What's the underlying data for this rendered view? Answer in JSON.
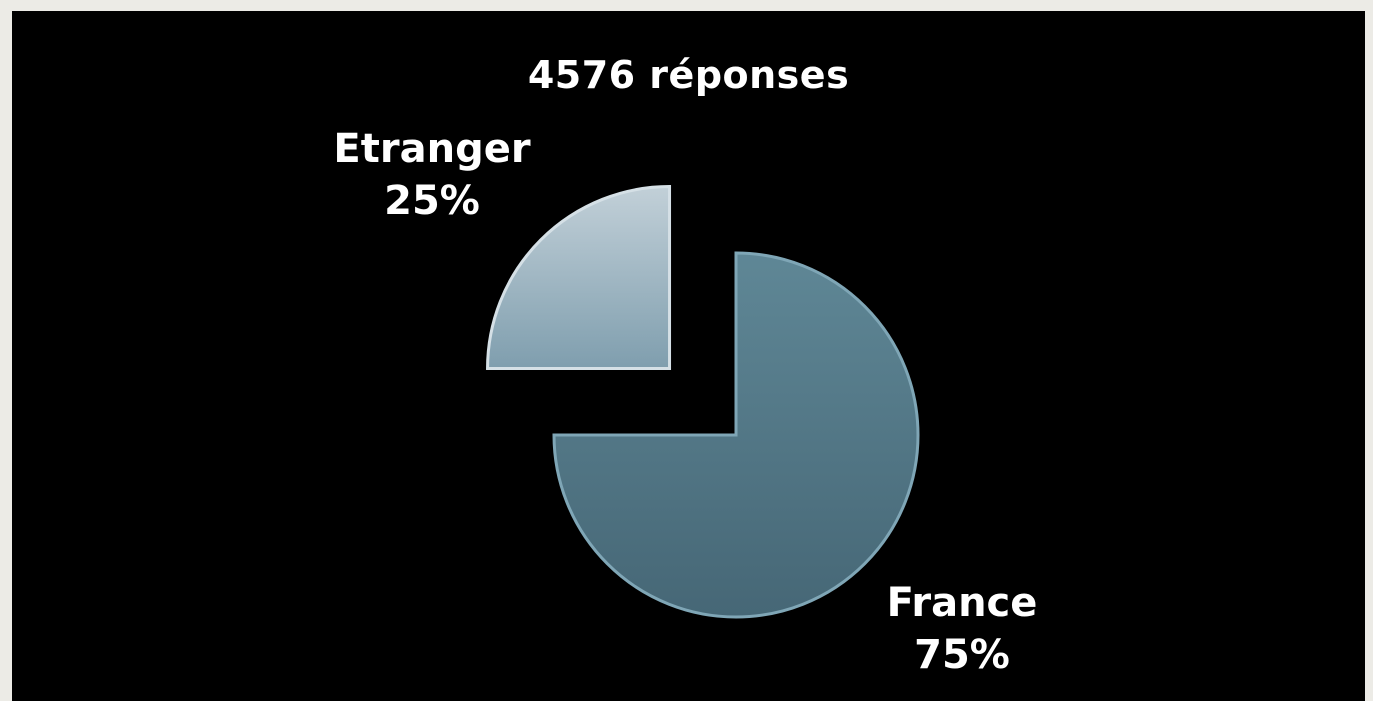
{
  "colors": {
    "page_background": "#ecebe6",
    "panel_background": "#000000",
    "text": "#ffffff",
    "france_top": "#5f8796",
    "france_bottom": "#466776",
    "etranger_top": "#c2d0d8",
    "etranger_bottom": "#7f9eae"
  },
  "chart_data": {
    "type": "pie",
    "title": "4576 réponses",
    "slices": [
      {
        "category": "France",
        "value": 75,
        "percent_label": "75%",
        "exploded": false
      },
      {
        "category": "Etranger",
        "value": 25,
        "percent_label": "25%",
        "exploded": true
      }
    ],
    "legend": "none",
    "data_labels": "category and percentage"
  }
}
